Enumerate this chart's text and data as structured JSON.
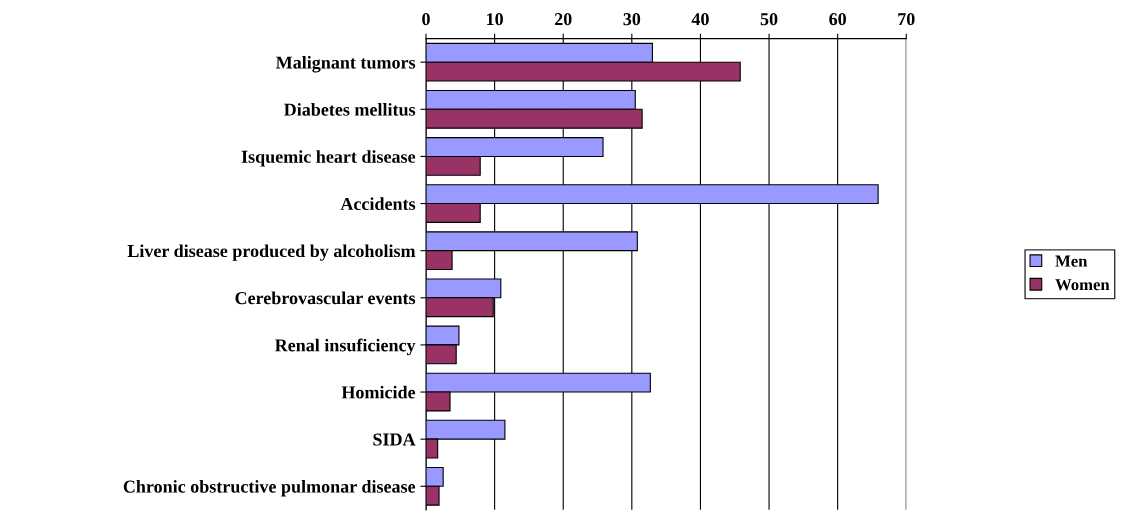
{
  "chart_data": {
    "type": "bar",
    "orientation": "horizontal",
    "categories": [
      "Malignant tumors",
      "Diabetes mellitus",
      "Isquemic heart disease",
      "Accidents",
      "Liver disease produced by alcoholism",
      "Cerebrovascular events",
      "Renal insuficiency",
      "Homicide",
      "SIDA",
      "Chronic obstructive pulmonar disease"
    ],
    "series": [
      {
        "name": "Men",
        "color": "#9999ff",
        "values": [
          33.0,
          30.5,
          25.8,
          65.9,
          30.8,
          10.9,
          4.8,
          32.7,
          11.5,
          2.5
        ]
      },
      {
        "name": "Women",
        "color": "#993366",
        "values": [
          45.8,
          31.5,
          7.9,
          7.9,
          3.8,
          9.8,
          4.4,
          3.5,
          1.7,
          1.9
        ]
      }
    ],
    "xlim": [
      0,
      70
    ],
    "xticks": [
      0,
      10,
      20,
      30,
      40,
      50,
      60,
      70
    ],
    "grid": "x",
    "legend": "right"
  }
}
